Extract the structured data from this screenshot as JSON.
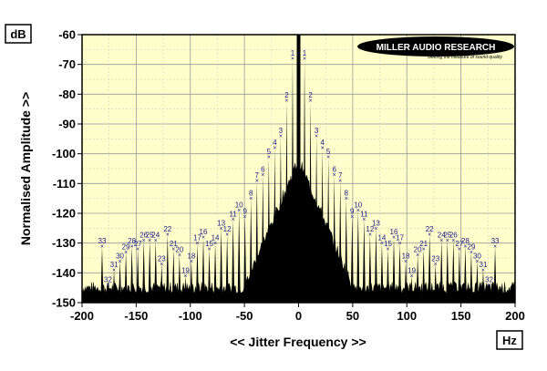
{
  "chart_data": {
    "type": "line",
    "title": "",
    "xlabel": "<< Jitter Frequency >>",
    "ylabel": "Normalised Amplitude >>",
    "y_unit": "dB",
    "x_unit": "Hz",
    "xlim": [
      -200,
      200
    ],
    "ylim": [
      -150,
      -60
    ],
    "x_ticks": [
      "-200",
      "-150",
      "-100",
      "-50",
      "0",
      "50",
      "100",
      "150",
      "200"
    ],
    "y_ticks": [
      "-60",
      "-70",
      "-80",
      "-90",
      "-100",
      "-110",
      "-120",
      "-130",
      "-140",
      "-150"
    ],
    "grid": true,
    "background": "#ffffcc",
    "trace_color": "#000000",
    "label_color": "#1a1a8c",
    "logo": {
      "line1": "MILLER AUDIO RESEARCH",
      "line2": "Getting the measure of sound quality"
    },
    "center_peak": {
      "x": 0,
      "y": -60
    },
    "sidebands": [
      {
        "label": "1",
        "x": 5.5,
        "y": -68
      },
      {
        "label": "2",
        "x": 11,
        "y": -82
      },
      {
        "label": "3",
        "x": 16.5,
        "y": -94
      },
      {
        "label": "4",
        "x": 22,
        "y": -98
      },
      {
        "label": "5",
        "x": 27.5,
        "y": -101
      },
      {
        "label": "6",
        "x": 33,
        "y": -107
      },
      {
        "label": "7",
        "x": 38.5,
        "y": -109
      },
      {
        "label": "8",
        "x": 44,
        "y": -115
      },
      {
        "label": "9",
        "x": 49.5,
        "y": -121
      },
      {
        "label": "10",
        "x": 55,
        "y": -119
      },
      {
        "label": "11",
        "x": 60.5,
        "y": -122
      },
      {
        "label": "12",
        "x": 66,
        "y": -127
      },
      {
        "label": "13",
        "x": 71.5,
        "y": -125
      },
      {
        "label": "14",
        "x": 77,
        "y": -130
      },
      {
        "label": "15",
        "x": 82.5,
        "y": -132
      },
      {
        "label": "16",
        "x": 88,
        "y": -128
      },
      {
        "label": "17",
        "x": 93.5,
        "y": -130
      },
      {
        "label": "18",
        "x": 99,
        "y": -136
      },
      {
        "label": "19",
        "x": 104.5,
        "y": -141
      },
      {
        "label": "20",
        "x": 110,
        "y": -134
      },
      {
        "label": "21",
        "x": 115.5,
        "y": -132
      },
      {
        "label": "22",
        "x": 121,
        "y": -127
      },
      {
        "label": "23",
        "x": 126.5,
        "y": -137
      },
      {
        "label": "24",
        "x": 132,
        "y": -129
      },
      {
        "label": "25",
        "x": 137.5,
        "y": -129
      },
      {
        "label": "26",
        "x": 143,
        "y": -129
      },
      {
        "label": "27",
        "x": 148.5,
        "y": -132
      },
      {
        "label": "28",
        "x": 154,
        "y": -131
      },
      {
        "label": "29",
        "x": 159.5,
        "y": -133
      },
      {
        "label": "30",
        "x": 165,
        "y": -136
      },
      {
        "label": "31",
        "x": 170.5,
        "y": -139
      },
      {
        "label": "32",
        "x": 176,
        "y": -144
      },
      {
        "label": "33",
        "x": 181.5,
        "y": -131
      }
    ]
  }
}
